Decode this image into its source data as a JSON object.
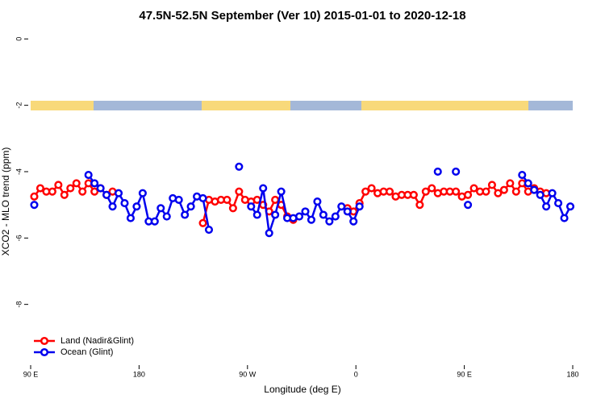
{
  "chart_data": {
    "type": "line",
    "title": "47.5N-52.5N September (Ver 10)   2015-01-01 to 2020-12-18",
    "x_label": "Longitude (deg E)",
    "y_label": "XCO2 - MLO trend (ppm)",
    "x": [
      93,
      98,
      103,
      108,
      113,
      118,
      123,
      128,
      133,
      138,
      143,
      148,
      153,
      158,
      163,
      168,
      173,
      178,
      183,
      188,
      193,
      198,
      203,
      208,
      213,
      218,
      223,
      228,
      233,
      238,
      243,
      248,
      253,
      258,
      263,
      268,
      273,
      278,
      283,
      288,
      293,
      298,
      303,
      308,
      313,
      318,
      323,
      328,
      333,
      338,
      343,
      348,
      353,
      358,
      363,
      368,
      373,
      378,
      383,
      388,
      393,
      398,
      403,
      408,
      413,
      418,
      423,
      428,
      433,
      438,
      443,
      448,
      453,
      458,
      463,
      468,
      473,
      478,
      483,
      488,
      493,
      498,
      503,
      508,
      513,
      518,
      523,
      528,
      533,
      538
    ],
    "series": [
      {
        "name": "Land (Nadir&Glint)",
        "color": "#ff0000",
        "values": [
          -4.75,
          -4.5,
          -4.6,
          -4.6,
          -4.4,
          -4.7,
          -4.5,
          -4.35,
          -4.6,
          -4.35,
          -4.6,
          -4.5,
          -4.7,
          -4.6,
          null,
          null,
          null,
          null,
          null,
          null,
          null,
          null,
          null,
          null,
          null,
          null,
          null,
          null,
          -5.55,
          -4.85,
          -4.9,
          -4.85,
          -4.85,
          -5.1,
          -4.6,
          -4.85,
          -4.9,
          -4.85,
          -5.0,
          -5.2,
          -4.85,
          -5.0,
          -5.35,
          -5.45,
          null,
          null,
          null,
          null,
          null,
          null,
          null,
          null,
          -5.1,
          -5.2,
          -4.95,
          -4.6,
          -4.5,
          -4.65,
          -4.6,
          -4.6,
          -4.75,
          -4.7,
          -4.7,
          -4.7,
          -5.0,
          -4.6,
          -4.5,
          -4.65,
          -4.6,
          -4.6,
          -4.6,
          -4.75,
          -4.7,
          -4.5,
          -4.6,
          -4.6,
          -4.4,
          -4.65,
          -4.55,
          -4.35,
          -4.6,
          -4.35,
          -4.6,
          -4.5,
          -4.6,
          -4.65,
          null,
          null,
          null,
          null
        ]
      },
      {
        "name": "Ocean (Glint)",
        "color": "#0000ee",
        "values": [
          -5.0,
          null,
          null,
          null,
          null,
          null,
          null,
          null,
          null,
          -4.1,
          -4.35,
          -4.5,
          -4.7,
          -5.05,
          -4.65,
          -4.95,
          -5.4,
          -5.05,
          -4.65,
          -5.5,
          -5.5,
          -5.1,
          -5.35,
          -4.8,
          -4.85,
          -5.3,
          -5.05,
          -4.75,
          -4.8,
          -5.75,
          null,
          null,
          null,
          null,
          -3.85,
          null,
          -5.05,
          -5.3,
          -4.5,
          -5.85,
          -5.3,
          -4.6,
          -5.4,
          -5.4,
          -5.35,
          -5.2,
          -5.45,
          -4.9,
          -5.3,
          -5.5,
          -5.35,
          -5.05,
          -5.2,
          -5.5,
          -5.05,
          null,
          null,
          null,
          null,
          null,
          null,
          null,
          null,
          null,
          null,
          null,
          null,
          -4.0,
          null,
          null,
          -4.0,
          null,
          -5.0,
          null,
          null,
          null,
          null,
          null,
          null,
          null,
          null,
          -4.1,
          -4.35,
          -4.55,
          -4.7,
          -5.05,
          -4.65,
          -4.95,
          -5.4,
          -5.05
        ]
      }
    ],
    "xlim": [
      90,
      540
    ],
    "xticks": [
      {
        "value": 90,
        "label": "90 E"
      },
      180,
      {
        "value": 270,
        "label": "90 W"
      },
      {
        "value": 360,
        "label": "0"
      },
      {
        "value": 450,
        "label": "90 E"
      },
      {
        "value": 540,
        "label": "180"
      }
    ],
    "ylim": [
      -10,
      0.25
    ],
    "yticks": [
      0,
      -2,
      -4,
      -6,
      -8
    ],
    "legend": "bottom-left"
  }
}
